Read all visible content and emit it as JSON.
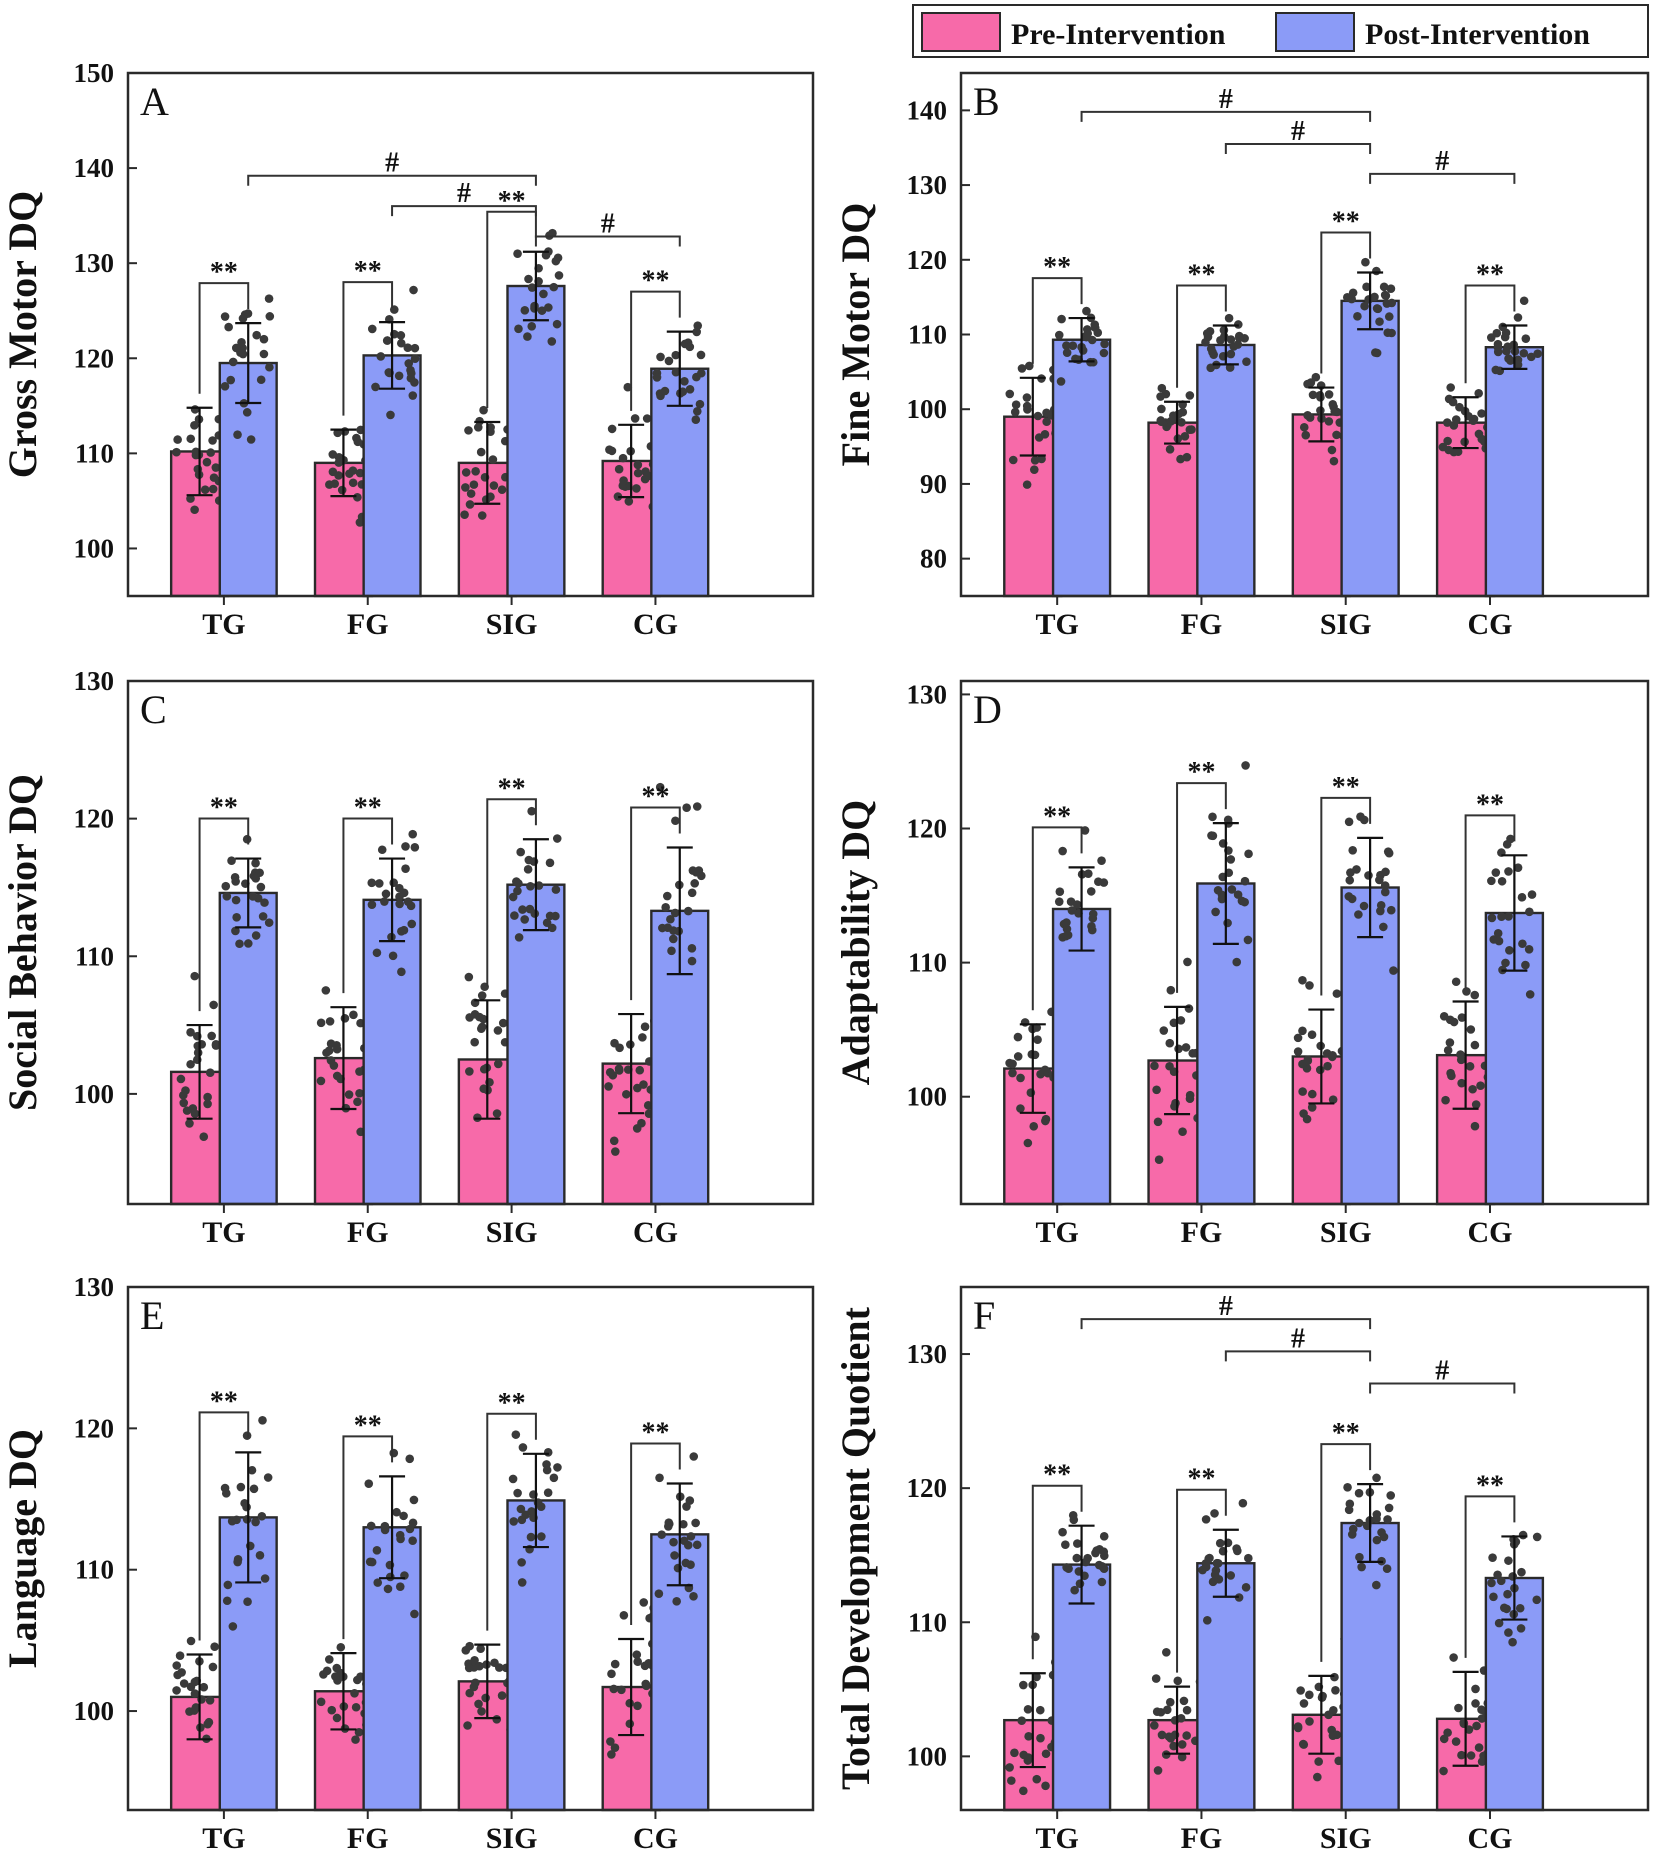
{
  "colors": {
    "pre": "#f76aa9",
    "post": "#8b9bf7",
    "axis": "#2a2a2a",
    "dot": "#3a3a3a"
  },
  "legend": {
    "pre_label": "Pre-Intervention",
    "post_label": "Post-Intervention"
  },
  "chart_data": [
    {
      "type": "bar",
      "panel": "A",
      "ylabel": "Gross Motor DQ",
      "categories": [
        "TG",
        "FG",
        "SIG",
        "CG"
      ],
      "ylim": [
        95,
        150
      ],
      "yticks": [
        100,
        110,
        120,
        130,
        140,
        150
      ],
      "series": [
        {
          "name": "Pre-Intervention",
          "values": [
            110.2,
            109.0,
            109.0,
            109.2
          ],
          "sd": [
            4.6,
            3.5,
            4.3,
            3.8
          ]
        },
        {
          "name": "Post-Intervention",
          "values": [
            119.5,
            120.3,
            127.6,
            118.9
          ],
          "sd": [
            4.2,
            3.5,
            3.6,
            3.9
          ]
        }
      ],
      "within_sig": "**",
      "between_sig": [
        {
          "from": "TG",
          "to": "SIG",
          "y": 139.2,
          "label": "#"
        },
        {
          "from": "FG",
          "to": "SIG",
          "y": 136.0,
          "label": "#"
        },
        {
          "from": "SIG",
          "to": "CG",
          "y": 132.8,
          "label": "#"
        }
      ]
    },
    {
      "type": "bar",
      "panel": "B",
      "ylabel": "Fine Motor DQ",
      "categories": [
        "TG",
        "FG",
        "SIG",
        "CG"
      ],
      "ylim": [
        75,
        145
      ],
      "yticks": [
        80,
        90,
        100,
        110,
        120,
        130,
        140
      ],
      "series": [
        {
          "name": "Pre-Intervention",
          "values": [
            99.0,
            98.2,
            99.3,
            98.2
          ],
          "sd": [
            5.2,
            2.8,
            3.6,
            3.4
          ]
        },
        {
          "name": "Post-Intervention",
          "values": [
            109.3,
            108.6,
            114.5,
            108.3
          ],
          "sd": [
            2.9,
            2.6,
            3.8,
            2.9
          ]
        }
      ],
      "within_sig": "**",
      "between_sig": [
        {
          "from": "TG",
          "to": "SIG",
          "y": 139.8,
          "label": "#"
        },
        {
          "from": "FG",
          "to": "SIG",
          "y": 135.5,
          "label": "#"
        },
        {
          "from": "SIG",
          "to": "CG",
          "y": 131.5,
          "label": "#"
        }
      ]
    },
    {
      "type": "bar",
      "panel": "C",
      "ylabel": "Social Behavior DQ",
      "categories": [
        "TG",
        "FG",
        "SIG",
        "CG"
      ],
      "ylim": [
        92,
        130
      ],
      "yticks": [
        100,
        110,
        120,
        130
      ],
      "series": [
        {
          "name": "Pre-Intervention",
          "values": [
            101.6,
            102.6,
            102.5,
            102.2
          ],
          "sd": [
            3.4,
            3.7,
            4.3,
            3.6
          ]
        },
        {
          "name": "Post-Intervention",
          "values": [
            114.6,
            114.1,
            115.2,
            113.3
          ],
          "sd": [
            2.5,
            3.0,
            3.3,
            4.6
          ]
        }
      ],
      "within_sig": "**",
      "between_sig": []
    },
    {
      "type": "bar",
      "panel": "D",
      "ylabel": "Adaptability DQ",
      "categories": [
        "TG",
        "FG",
        "SIG",
        "CG"
      ],
      "ylim": [
        92,
        131
      ],
      "yticks": [
        100,
        110,
        120,
        130
      ],
      "series": [
        {
          "name": "Pre-Intervention",
          "values": [
            102.1,
            102.7,
            103.0,
            103.1
          ],
          "sd": [
            3.3,
            4.0,
            3.5,
            4.0
          ]
        },
        {
          "name": "Post-Intervention",
          "values": [
            114.0,
            115.9,
            115.6,
            113.7
          ],
          "sd": [
            3.1,
            4.5,
            3.7,
            4.3
          ]
        }
      ],
      "within_sig": "**",
      "between_sig": []
    },
    {
      "type": "bar",
      "panel": "E",
      "ylabel": "Language DQ",
      "categories": [
        "TG",
        "FG",
        "SIG",
        "CG"
      ],
      "ylim": [
        93,
        130
      ],
      "yticks": [
        100,
        110,
        120,
        130
      ],
      "series": [
        {
          "name": "Pre-Intervention",
          "values": [
            101.0,
            101.4,
            102.1,
            101.7
          ],
          "sd": [
            3.0,
            2.7,
            2.6,
            3.4
          ]
        },
        {
          "name": "Post-Intervention",
          "values": [
            113.7,
            113.0,
            114.9,
            112.5
          ],
          "sd": [
            4.6,
            3.6,
            3.3,
            3.6
          ]
        }
      ],
      "within_sig": "**",
      "between_sig": []
    },
    {
      "type": "bar",
      "panel": "F",
      "ylabel": "Total Development Quotient",
      "categories": [
        "TG",
        "FG",
        "SIG",
        "CG"
      ],
      "ylim": [
        96,
        135
      ],
      "yticks": [
        100,
        110,
        120,
        130
      ],
      "series": [
        {
          "name": "Pre-Intervention",
          "values": [
            102.7,
            102.7,
            103.1,
            102.8
          ],
          "sd": [
            3.5,
            2.5,
            2.9,
            3.5
          ]
        },
        {
          "name": "Post-Intervention",
          "values": [
            114.3,
            114.4,
            117.4,
            113.3
          ],
          "sd": [
            2.9,
            2.5,
            2.9,
            3.1
          ]
        }
      ],
      "within_sig": "**",
      "between_sig": [
        {
          "from": "TG",
          "to": "SIG",
          "y": 132.6,
          "label": "#"
        },
        {
          "from": "FG",
          "to": "SIG",
          "y": 130.2,
          "label": "#"
        },
        {
          "from": "SIG",
          "to": "CG",
          "y": 127.8,
          "label": "#"
        }
      ]
    }
  ]
}
